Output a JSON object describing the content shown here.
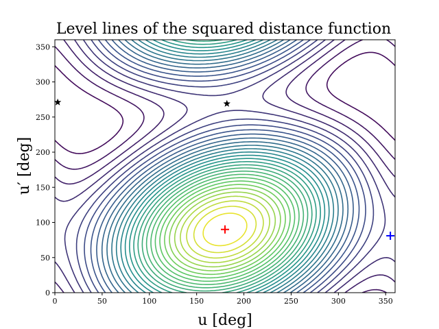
{
  "chart_data": {
    "type": "contour",
    "title": "Level lines of the squared distance function",
    "xlabel": "u [deg]",
    "ylabel": "u′ [deg]",
    "xlim": [
      0,
      360
    ],
    "ylim": [
      0,
      360
    ],
    "xticks": [
      0,
      50,
      100,
      150,
      200,
      250,
      300,
      350
    ],
    "yticks": [
      0,
      50,
      100,
      150,
      200,
      250,
      300,
      350
    ],
    "grid": false,
    "colormap": [
      "#440154",
      "#3b528b",
      "#21918c",
      "#5ec962",
      "#fde725"
    ],
    "surface": {
      "center": [
        180,
        90
      ],
      "coupling": 0.55,
      "levels": 30
    },
    "markers": [
      {
        "name": "minimum",
        "symbol": "+",
        "x": 180,
        "y": 90,
        "color": "#ff0000"
      },
      {
        "name": "cross-point",
        "symbol": "+",
        "x": 355,
        "y": 81,
        "color": "#0000ff"
      },
      {
        "name": "saddle-left",
        "symbol": "★",
        "x": 3,
        "y": 271,
        "color": "#000000"
      },
      {
        "name": "saddle-center",
        "symbol": "★",
        "x": 182,
        "y": 269,
        "color": "#000000"
      }
    ]
  }
}
